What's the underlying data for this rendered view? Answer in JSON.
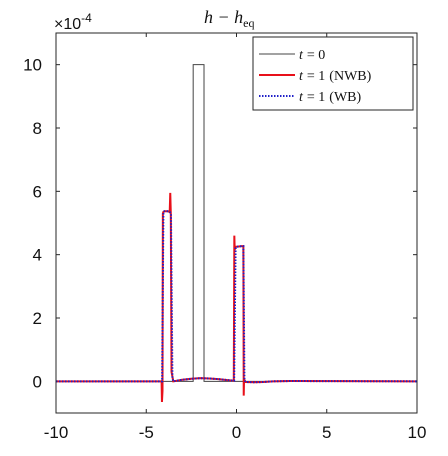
{
  "chart_data": {
    "type": "line",
    "title": {
      "main": "h − h",
      "sub": "eq"
    },
    "exponent": {
      "base": "×10",
      "power": "-4"
    },
    "xlim": [
      -10,
      10
    ],
    "ylim": [
      -1,
      11
    ],
    "xticks": [
      -10,
      -5,
      0,
      5,
      10
    ],
    "yticks": [
      0,
      2,
      4,
      6,
      8,
      10
    ],
    "xtick_labels": [
      "-10",
      "-5",
      "0",
      "5",
      "10"
    ],
    "ytick_labels": [
      "0",
      "2",
      "4",
      "6",
      "8",
      "10"
    ],
    "legend_position": "top-right",
    "grid": false,
    "legend": [
      {
        "label_var": "t",
        "label_val": "= 0",
        "label_extra": ""
      },
      {
        "label_var": "t",
        "label_val": "= 1",
        "label_extra": "(NWB)"
      },
      {
        "label_var": "t",
        "label_val": "= 1",
        "label_extra": "(WB)"
      }
    ],
    "series": [
      {
        "color": "#444444",
        "style": "solid",
        "x": [
          -10,
          -2.4,
          -2.4,
          -1.8,
          -1.8,
          10
        ],
        "y": [
          0,
          0,
          10,
          10,
          0,
          0
        ]
      },
      {
        "color": "#e8101a",
        "style": "solid",
        "x": [
          -10,
          -4.15,
          -4.13,
          -4.1,
          -4.08,
          -4.05,
          -4.0,
          -3.8,
          -3.7,
          -3.67,
          -3.64,
          -3.6,
          -3.5,
          -3.0,
          -2.5,
          -2.0,
          -1.5,
          -1.0,
          -0.5,
          -0.15,
          -0.12,
          -0.1,
          -0.08,
          -0.05,
          0.0,
          0.3,
          0.38,
          0.4,
          0.42,
          0.45,
          0.5,
          1.0,
          1.5,
          2.0,
          3.0,
          10
        ],
        "y": [
          0,
          0,
          -0.65,
          -0.3,
          5.3,
          5.35,
          5.37,
          5.37,
          5.35,
          5.95,
          5.3,
          0.3,
          0.0,
          0.05,
          0.08,
          0.1,
          0.09,
          0.07,
          0.04,
          0.02,
          4.6,
          4.15,
          4.2,
          4.25,
          4.25,
          4.27,
          4.27,
          -0.45,
          0.1,
          0.0,
          -0.02,
          -0.03,
          -0.02,
          0.0,
          0.01,
          0
        ]
      },
      {
        "color": "#2020c8",
        "style": "dotted",
        "x": [
          -10,
          -4.12,
          -4.05,
          -4.0,
          -3.8,
          -3.7,
          -3.63,
          -3.55,
          -3.5,
          -3.0,
          -2.5,
          -2.0,
          -1.5,
          -1.0,
          -0.5,
          -0.13,
          -0.05,
          0.0,
          0.3,
          0.38,
          0.44,
          0.5,
          1.0,
          1.5,
          2.0,
          3.0,
          10
        ],
        "y": [
          0,
          0,
          5.35,
          5.37,
          5.37,
          5.35,
          5.3,
          0.1,
          0.0,
          0.05,
          0.08,
          0.1,
          0.09,
          0.07,
          0.04,
          0.02,
          4.2,
          4.25,
          4.27,
          4.27,
          0.05,
          -0.02,
          -0.03,
          -0.02,
          0.0,
          0.01,
          0
        ]
      }
    ]
  }
}
